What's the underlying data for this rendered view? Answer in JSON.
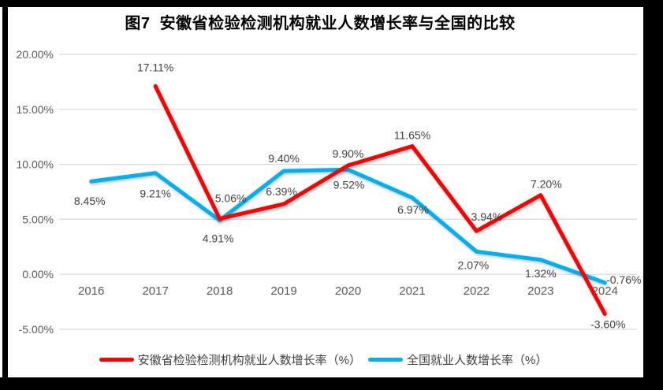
{
  "title": "图7  安徽省检验检测机构就业人数增长率与全国的比较",
  "chart_data": {
    "type": "line",
    "title": "图7 安徽省检验检测机构就业人数增长率与全国的比较",
    "categories": [
      "2016",
      "2017",
      "2018",
      "2019",
      "2020",
      "2021",
      "2022",
      "2023",
      "2024"
    ],
    "series": [
      {
        "name": "安徽省检验检测机构就业人数增长率（%）",
        "color": "#FF0000",
        "values": [
          null,
          17.11,
          5.06,
          6.39,
          9.9,
          11.65,
          3.94,
          7.2,
          -3.6
        ],
        "labels": [
          "",
          "17.11%",
          "5.06%",
          "6.39%",
          "9.90%",
          "11.65%",
          "3.94%",
          "7.20%",
          "-3.60%"
        ]
      },
      {
        "name": "全国就业人数增长率（%）",
        "color": "#00B0F0",
        "values": [
          8.45,
          9.21,
          4.91,
          9.4,
          9.52,
          6.97,
          2.07,
          1.32,
          -0.76
        ],
        "labels": [
          "8.45%",
          "9.21%",
          "4.91%",
          "9.40%",
          "9.52%",
          "6.97%",
          "2.07%",
          "1.32%",
          "-0.76%"
        ]
      }
    ],
    "ylim": [
      -5,
      20
    ],
    "y_ticks": [
      {
        "label": "20.00%",
        "value": 20
      },
      {
        "label": "15.00%",
        "value": 15
      },
      {
        "label": "10.00%",
        "value": 10
      },
      {
        "label": "5.00%",
        "value": 5
      },
      {
        "label": "0.00%",
        "value": 0
      },
      {
        "label": "-5.00%",
        "value": -5
      }
    ],
    "grid": "horizontal",
    "legend_position": "bottom",
    "colors": {
      "gridline": "#D9D9D9",
      "tick_text": "#595959",
      "data_label_text": "#404040",
      "title_text": "#000000",
      "frame": "#000000"
    }
  }
}
